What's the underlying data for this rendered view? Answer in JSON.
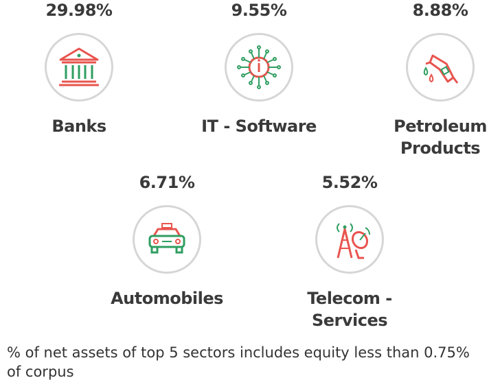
{
  "chart_data": {
    "type": "table",
    "unit": "%",
    "sectors": [
      {
        "name": "Banks",
        "value_label": "29.98%",
        "value": 29.98,
        "icon": "bank-icon"
      },
      {
        "name": "IT - Software",
        "value_label": "9.55%",
        "value": 9.55,
        "icon": "chip-icon"
      },
      {
        "name": "Petroleum Products",
        "value_label": "8.88%",
        "value": 8.88,
        "icon": "fuel-nozzle-icon"
      },
      {
        "name": "Automobiles",
        "value_label": "6.71%",
        "value": 6.71,
        "icon": "car-icon"
      },
      {
        "name": "Telecom - Services",
        "value_label": "5.52%",
        "value": 5.52,
        "icon": "telecom-tower-icon"
      }
    ]
  },
  "footnote": "% of net assets of top 5 sectors includes equity less than 0.75% of corpus",
  "colors": {
    "red": "#e8544e",
    "green": "#2f9e61",
    "circle": "#d6d6d6",
    "text": "#3a3a3a"
  }
}
